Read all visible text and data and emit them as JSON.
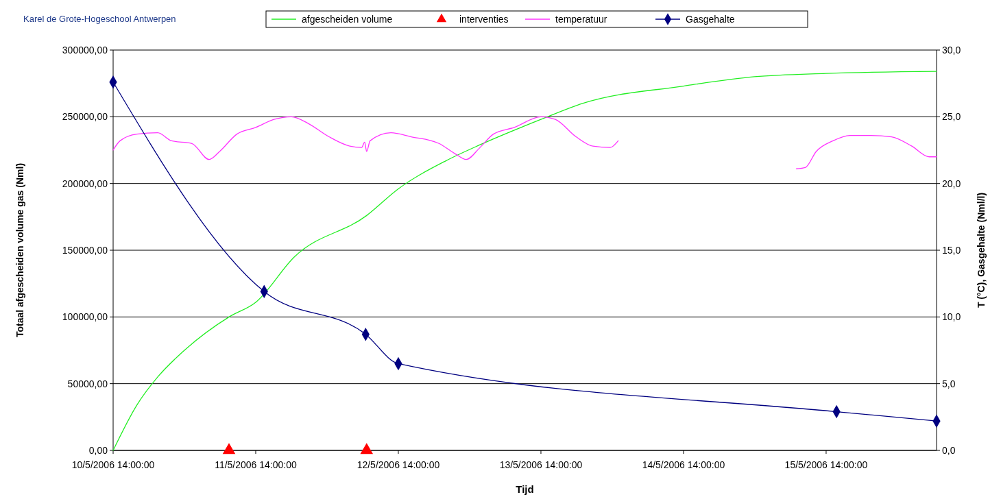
{
  "chart_data": {
    "type": "line",
    "xlabel": "Tijd",
    "ylabel": "Totaal afgescheiden volume gas (Nml)",
    "y2label": "T (°C), Gasgehalte (Nml/l)",
    "annotations": [
      "Karel de Grote-Hogeschool Antwerpen"
    ],
    "xlim": [
      "2006-05-10T14:00",
      "2006-05-16T08:35"
    ],
    "xticks": [
      {
        "value": "2006-05-10T14:00",
        "label": "10/5/2006 14:00:00"
      },
      {
        "value": "2006-05-11T14:00",
        "label": "11/5/2006 14:00:00"
      },
      {
        "value": "2006-05-12T14:00",
        "label": "12/5/2006 14:00:00"
      },
      {
        "value": "2006-05-13T14:00",
        "label": "13/5/2006 14:00:00"
      },
      {
        "value": "2006-05-14T14:00",
        "label": "14/5/2006 14:00:00"
      },
      {
        "value": "2006-05-15T14:00",
        "label": "15/5/2006 14:00:00"
      }
    ],
    "ylim": [
      0,
      300000
    ],
    "yticks": [
      {
        "value": 0,
        "label": "0,00"
      },
      {
        "value": 50000,
        "label": "50000,00"
      },
      {
        "value": 100000,
        "label": "100000,00"
      },
      {
        "value": 150000,
        "label": "150000,00"
      },
      {
        "value": 200000,
        "label": "200000,00"
      },
      {
        "value": 250000,
        "label": "250000,00"
      },
      {
        "value": 300000,
        "label": "300000,00"
      }
    ],
    "y2lim": [
      0,
      30
    ],
    "y2ticks": [
      {
        "value": 0,
        "label": "0,0"
      },
      {
        "value": 5,
        "label": "5,0"
      },
      {
        "value": 10,
        "label": "10,0"
      },
      {
        "value": 15,
        "label": "15,0"
      },
      {
        "value": 20,
        "label": "20,0"
      },
      {
        "value": 25,
        "label": "25,0"
      },
      {
        "value": 30,
        "label": "30,0"
      }
    ],
    "grid": "y",
    "legend": "top",
    "series": [
      {
        "name": "afgescheiden volume",
        "type": "line",
        "color": "#22ee22",
        "marker": "none",
        "x": [
          "2006-05-10T14:00",
          "2006-05-10T18:00",
          "2006-05-10T21:30",
          "2006-05-11T02:00",
          "2006-05-11T09:30",
          "2006-05-11T14:00",
          "2006-05-11T20:30",
          "2006-05-12T08:40",
          "2006-05-12T14:00",
          "2006-05-12T22:00",
          "2006-05-13T03:45",
          "2006-05-13T14:00",
          "2006-05-13T21:00",
          "2006-05-14T14:00",
          "2006-05-15T01:55",
          "2006-05-15T14:00",
          "2006-05-16T08:35"
        ],
        "values": [
          0,
          34000,
          55000,
          75000,
          100000,
          111000,
          145000,
          176000,
          196000,
          217000,
          229000,
          248000,
          260000,
          273000,
          280000,
          282500,
          284000
        ]
      },
      {
        "name": "interventies",
        "type": "scatter",
        "color": "#ff0000",
        "marker": "triangle",
        "x": [
          "2006-05-11T09:30",
          "2006-05-12T08:40"
        ],
        "values": [
          0,
          0
        ]
      },
      {
        "name": "temperatuur",
        "type": "line",
        "color": "#ff33ff",
        "marker": "none",
        "axis": "y2",
        "x": [
          "2006-05-10T14:00",
          "2006-05-10T15:10",
          "2006-05-10T18:00",
          "2006-05-10T21:30",
          "2006-05-10T23:50",
          "2006-05-11T03:15",
          "2006-05-11T06:10",
          "2006-05-11T07:55",
          "2006-05-11T10:50",
          "2006-05-11T14:00",
          "2006-05-11T17:05",
          "2006-05-11T20:00",
          "2006-05-11T22:50",
          "2006-05-12T02:20",
          "2006-05-12T05:50",
          "2006-05-12T07:50",
          "2006-05-12T08:20",
          "2006-05-12T08:40",
          "2006-05-12T09:15",
          "2006-05-12T12:45",
          "2006-05-12T16:10",
          "2006-05-12T20:50",
          "2006-05-12T23:40",
          "2006-05-13T01:25",
          "2006-05-13T03:45",
          "2006-05-13T06:00",
          "2006-05-13T09:30",
          "2006-05-13T14:00",
          "2006-05-13T16:25",
          "2006-05-13T19:55",
          "2006-05-13T22:45",
          "2006-05-14T01:40",
          "2006-05-14T03:00",
          "2006-05-14T12:00",
          "2006-05-15T09:00",
          "2006-05-15T10:30",
          "2006-05-15T12:20",
          "2006-05-15T15:10",
          "2006-05-15T18:00",
          "2006-05-15T21:30",
          "2006-05-16T01:00",
          "2006-05-16T04:25",
          "2006-05-16T07:20",
          "2006-05-16T08:35"
        ],
        "values": [
          22.5,
          23.2,
          23.7,
          23.8,
          23.2,
          23.0,
          21.8,
          22.4,
          23.7,
          24.2,
          24.8,
          25.0,
          24.5,
          23.5,
          22.8,
          22.7,
          23.1,
          22.4,
          23.2,
          23.8,
          23.5,
          23.0,
          22.2,
          21.8,
          22.7,
          23.7,
          24.2,
          25.0,
          24.8,
          23.5,
          22.8,
          22.7,
          23.2,
          null,
          21.1,
          21.2,
          22.4,
          23.2,
          23.6,
          23.6,
          23.5,
          22.8,
          22.0,
          22.0
        ]
      },
      {
        "name": "Gasgehalte",
        "type": "line",
        "color": "#000080",
        "marker": "diamond",
        "axis": "y2",
        "x": [
          "2006-05-10T14:00",
          "2006-05-11T15:25",
          "2006-05-12T08:30",
          "2006-05-12T14:00",
          "2006-05-15T15:45",
          "2006-05-16T08:35"
        ],
        "values": [
          27.6,
          11.9,
          8.7,
          6.5,
          2.9,
          2.2
        ]
      }
    ]
  }
}
